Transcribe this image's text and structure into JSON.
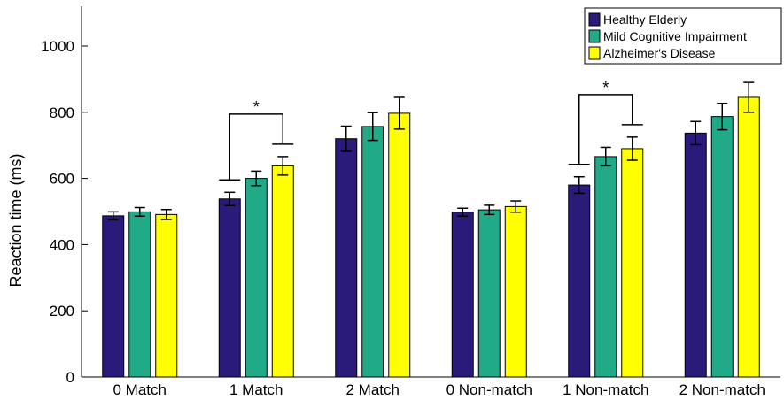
{
  "chart_data": {
    "type": "bar",
    "title": "",
    "xlabel": "",
    "ylabel": "Reaction time (ms)",
    "ylim": [
      0,
      1120
    ],
    "yticks": [
      0,
      200,
      400,
      600,
      800,
      1000
    ],
    "categories": [
      "0 Match",
      "1 Match",
      "2 Match",
      "0 Non-match",
      "1 Non-match",
      "2 Non-match"
    ],
    "series": [
      {
        "name": "Healthy Elderly",
        "color": "#2a1a7a",
        "values": [
          487,
          538,
          720,
          498,
          580,
          737
        ],
        "errors": [
          12,
          20,
          38,
          12,
          25,
          35
        ]
      },
      {
        "name": "Mild Cognitive Impairment",
        "color": "#20aa88",
        "values": [
          499,
          600,
          757,
          505,
          666,
          787
        ],
        "errors": [
          13,
          22,
          42,
          14,
          28,
          40
        ]
      },
      {
        "name": "Alzheimer's Disease",
        "color": "#ffff00",
        "values": [
          491,
          638,
          797,
          515,
          690,
          845
        ],
        "errors": [
          15,
          28,
          48,
          17,
          35,
          45
        ]
      }
    ],
    "significance": [
      {
        "category": "1 Match",
        "label": "*",
        "from_series": 0,
        "to_series": 2
      },
      {
        "category": "1 Non-match",
        "label": "*",
        "from_series": 0,
        "to_series": 2
      }
    ],
    "legend_position": "top-right",
    "grid": false
  }
}
